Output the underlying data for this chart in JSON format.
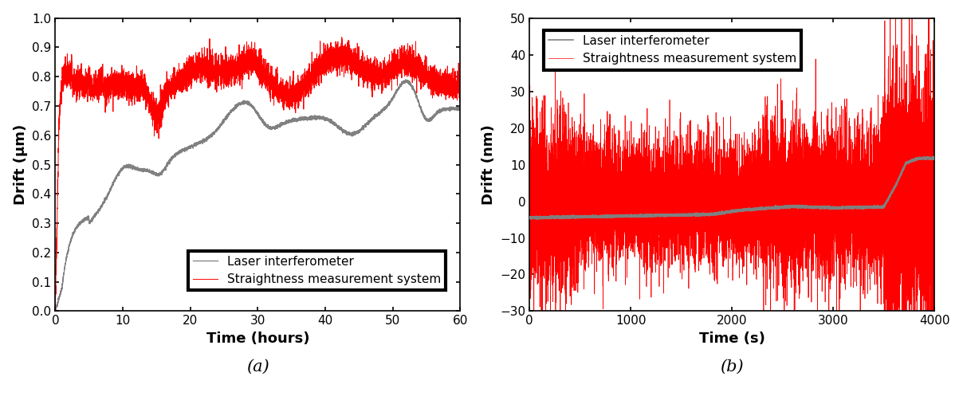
{
  "subplot_a": {
    "xlabel": "Time (hours)",
    "ylabel": "Drift (μm)",
    "xlim": [
      0,
      60
    ],
    "ylim": [
      0.0,
      1.0
    ],
    "xticks": [
      0,
      10,
      20,
      30,
      40,
      50,
      60
    ],
    "yticks": [
      0.0,
      0.1,
      0.2,
      0.3,
      0.4,
      0.5,
      0.6,
      0.7,
      0.8,
      0.9,
      1.0
    ],
    "label_a": "(a)",
    "legend_laser": "Laser interferometer",
    "legend_sms": "Straightness measurement system",
    "laser_color": "#808080",
    "sms_color": "#ff0000"
  },
  "subplot_b": {
    "xlabel": "Time (s)",
    "ylabel": "Drift (nm)",
    "xlim": [
      0,
      4000
    ],
    "ylim": [
      -30,
      50
    ],
    "xticks": [
      0,
      1000,
      2000,
      3000,
      4000
    ],
    "yticks": [
      -30,
      -20,
      -10,
      0,
      10,
      20,
      30,
      40,
      50
    ],
    "label_b": "(b)",
    "legend_laser": "Laser interferometer",
    "legend_sms": "Straightness measurement system",
    "laser_color": "#808080",
    "sms_color": "#ff0000"
  },
  "figure_bg": "#ffffff",
  "font_size_label": 13,
  "font_size_tick": 11,
  "font_size_legend": 11,
  "font_size_sublabel": 15
}
